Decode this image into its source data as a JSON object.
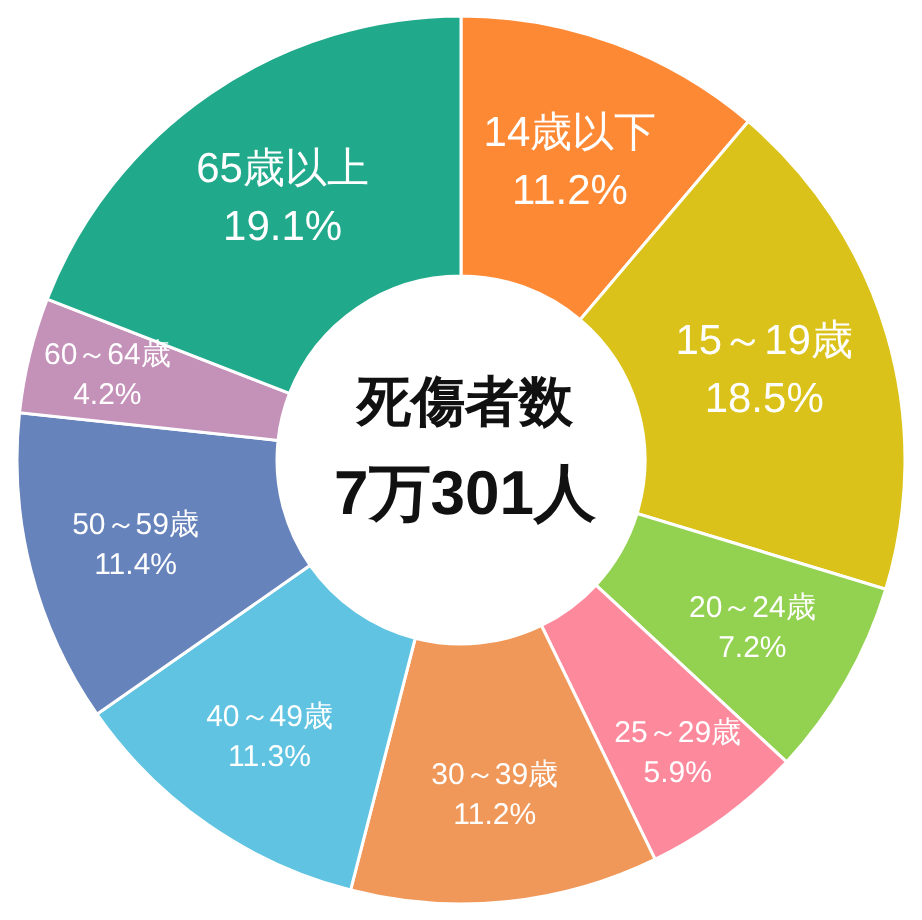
{
  "chart_data": {
    "type": "donut",
    "title": "死傷者数",
    "subtitle": "7万301人",
    "categories": [
      "14歳以下",
      "15～19歳",
      "20～24歳",
      "25～29歳",
      "30～39歳",
      "40～49歳",
      "50～59歳",
      "60～64歳",
      "65歳以上"
    ],
    "values": [
      11.2,
      18.5,
      7.2,
      5.9,
      11.2,
      11.3,
      11.4,
      4.2,
      19.1
    ],
    "colors": [
      "#fe8935",
      "#dbc21a",
      "#93d150",
      "#fd8a9c",
      "#f0985a",
      "#60c3e1",
      "#6783bb",
      "#c491b9",
      "#21a98b"
    ],
    "value_labels": [
      "11.2%",
      "18.5%",
      "7.2%",
      "5.9%",
      "11.2%",
      "11.3%",
      "11.4%",
      "4.2%",
      "19.1%"
    ]
  }
}
